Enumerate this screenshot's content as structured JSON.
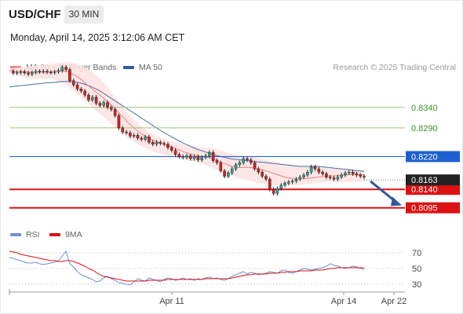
{
  "header": {
    "symbol": "USD/CHF",
    "timeframe": "30 MIN",
    "datetime": "Monday, April 14, 2025 3:12:06 AM CET"
  },
  "legend": {
    "ma20_label": "MA 20 + Bollinger Bands",
    "ma50_label": "MA 50",
    "credit": "Research © 2025 Trading Central",
    "rsi_label": "RSI",
    "ma9_label": "9MA"
  },
  "colors": {
    "ma20": "#f08080",
    "bollinger_fill": "#fde2e2",
    "ma50": "#4a6fa5",
    "bull": "#26a69a",
    "bear": "#cc2222",
    "rsi": "#6f8fd8",
    "rsi_ma9": "#dd1111",
    "resistance": "#9ec77a",
    "pivot": "#1e5fd0",
    "support": "#dd1111",
    "arrow": "#2f5b9c"
  },
  "chart_data": [
    {
      "type": "candlestick",
      "title": "USD/CHF",
      "timeframe": "30 MIN",
      "x_ticks": [
        "Apr 11",
        "Apr 14",
        "Apr 22"
      ],
      "ylim": [
        0.806,
        0.842
      ],
      "current_price": "0.8163",
      "levels": [
        {
          "label": "0.8340",
          "value": 0.834,
          "kind": "resistance"
        },
        {
          "label": "0.8290",
          "value": 0.829,
          "kind": "resistance"
        },
        {
          "label": "0.8220",
          "value": 0.822,
          "kind": "pivot"
        },
        {
          "label": "0.8140",
          "value": 0.814,
          "kind": "support"
        },
        {
          "label": "0.8095",
          "value": 0.8095,
          "kind": "support"
        }
      ],
      "projection": {
        "from": 0.816,
        "to": 0.8103
      },
      "close": [
        0.8428,
        0.8424,
        0.8425,
        0.8427,
        0.8424,
        0.8421,
        0.8425,
        0.8428,
        0.8427,
        0.8428,
        0.8426,
        0.8425,
        0.8427,
        0.843,
        0.8438,
        0.8432,
        0.8405,
        0.8395,
        0.8385,
        0.838,
        0.837,
        0.8358,
        0.8365,
        0.835,
        0.8345,
        0.8352,
        0.834,
        0.8335,
        0.832,
        0.829,
        0.828,
        0.8278,
        0.827,
        0.8272,
        0.8265,
        0.8262,
        0.8268,
        0.8255,
        0.825,
        0.8255,
        0.8252,
        0.825,
        0.8242,
        0.8235,
        0.8225,
        0.822,
        0.8218,
        0.8222,
        0.8215,
        0.822,
        0.8212,
        0.8218,
        0.8222,
        0.823,
        0.821,
        0.8205,
        0.8185,
        0.8172,
        0.818,
        0.819,
        0.82,
        0.8205,
        0.8215,
        0.8212,
        0.8205,
        0.819,
        0.8182,
        0.8172,
        0.8165,
        0.814,
        0.813,
        0.8142,
        0.815,
        0.8155,
        0.8158,
        0.816,
        0.8165,
        0.817,
        0.8175,
        0.8182,
        0.8195,
        0.819,
        0.8182,
        0.8178,
        0.817,
        0.8168,
        0.8165,
        0.817,
        0.8175,
        0.818,
        0.8182,
        0.8178,
        0.8175,
        0.8172,
        0.817
      ],
      "ma20": [
        0.843,
        0.8429,
        0.8428,
        0.8427,
        0.8427,
        0.8426,
        0.8426,
        0.8426,
        0.8426,
        0.8426,
        0.8426,
        0.8426,
        0.8427,
        0.8428,
        0.8428,
        0.8428,
        0.8425,
        0.842,
        0.8415,
        0.8408,
        0.84,
        0.8392,
        0.8385,
        0.8377,
        0.837,
        0.8362,
        0.8354,
        0.8346,
        0.8337,
        0.8327,
        0.8317,
        0.8307,
        0.8298,
        0.829,
        0.8282,
        0.8275,
        0.827,
        0.8265,
        0.826,
        0.8257,
        0.8253,
        0.825,
        0.8247,
        0.8243,
        0.824,
        0.8236,
        0.8232,
        0.8229,
        0.8226,
        0.8224,
        0.8222,
        0.822,
        0.8219,
        0.8217,
        0.8214,
        0.8211,
        0.8207,
        0.8203,
        0.8199,
        0.8196,
        0.8194,
        0.8193,
        0.8193,
        0.8194,
        0.8193,
        0.8192,
        0.819,
        0.8188,
        0.8185,
        0.8182,
        0.8179,
        0.8176,
        0.8173,
        0.817,
        0.8168,
        0.8167,
        0.8166,
        0.8166,
        0.8166,
        0.8167,
        0.8168,
        0.8169,
        0.817,
        0.8171,
        0.8172,
        0.8173,
        0.8173,
        0.8174,
        0.8174,
        0.8175,
        0.8176,
        0.8176,
        0.8176,
        0.8176,
        0.8175
      ],
      "bb_upper": [
        0.8435,
        0.8436,
        0.8437,
        0.8438,
        0.8439,
        0.844,
        0.8441,
        0.8442,
        0.8443,
        0.8444,
        0.8445,
        0.8446,
        0.8447,
        0.8448,
        0.8449,
        0.845,
        0.845,
        0.8448,
        0.8446,
        0.8442,
        0.8438,
        0.8432,
        0.8426,
        0.8418,
        0.841,
        0.84,
        0.839,
        0.8378,
        0.8366,
        0.8354,
        0.8342,
        0.833,
        0.832,
        0.831,
        0.8302,
        0.8294,
        0.8287,
        0.828,
        0.8275,
        0.827,
        0.8266,
        0.8263,
        0.826,
        0.8258,
        0.8255,
        0.8252,
        0.825,
        0.8248,
        0.8246,
        0.8244,
        0.8243,
        0.8242,
        0.8242,
        0.8242,
        0.824,
        0.8238,
        0.8235,
        0.8232,
        0.8229,
        0.8226,
        0.8224,
        0.8223,
        0.8222,
        0.8221,
        0.822,
        0.8218,
        0.8216,
        0.8214,
        0.8212,
        0.821,
        0.8208,
        0.8206,
        0.8204,
        0.8202,
        0.82,
        0.8198,
        0.8197,
        0.8196,
        0.8196,
        0.8196,
        0.8196,
        0.8196,
        0.8196,
        0.8195,
        0.8194,
        0.8193,
        0.8192,
        0.8191,
        0.819,
        0.819,
        0.819,
        0.8189,
        0.8188,
        0.8187,
        0.8186
      ],
      "bb_lower": [
        0.8422,
        0.842,
        0.8418,
        0.8415,
        0.8412,
        0.841,
        0.841,
        0.841,
        0.841,
        0.841,
        0.841,
        0.841,
        0.8408,
        0.8404,
        0.84,
        0.8395,
        0.8388,
        0.838,
        0.8372,
        0.8364,
        0.8356,
        0.8348,
        0.834,
        0.8332,
        0.8324,
        0.8316,
        0.8308,
        0.83,
        0.8292,
        0.8284,
        0.8276,
        0.8268,
        0.8262,
        0.8256,
        0.825,
        0.8245,
        0.8241,
        0.8237,
        0.8233,
        0.823,
        0.8227,
        0.8224,
        0.8222,
        0.822,
        0.8218,
        0.8216,
        0.8214,
        0.8212,
        0.821,
        0.8208,
        0.8206,
        0.8203,
        0.82,
        0.8196,
        0.8192,
        0.8188,
        0.8184,
        0.818,
        0.8176,
        0.8173,
        0.817,
        0.8167,
        0.8164,
        0.8162,
        0.816,
        0.8158,
        0.8156,
        0.8154,
        0.8152,
        0.815,
        0.815,
        0.815,
        0.815,
        0.815,
        0.815,
        0.815,
        0.815,
        0.8151,
        0.8152,
        0.8153,
        0.8154,
        0.8155,
        0.8156,
        0.8157,
        0.8158,
        0.8158,
        0.8158,
        0.8158,
        0.8158,
        0.8158,
        0.8158,
        0.8158,
        0.8158,
        0.8158,
        0.8158
      ],
      "ma50": [
        0.839,
        0.8391,
        0.8392,
        0.8393,
        0.8394,
        0.8395,
        0.8396,
        0.8397,
        0.8398,
        0.8399,
        0.84,
        0.84,
        0.8401,
        0.8402,
        0.8403,
        0.8403,
        0.8403,
        0.8402,
        0.8401,
        0.8399,
        0.8396,
        0.8393,
        0.8389,
        0.8385,
        0.838,
        0.8374,
        0.8368,
        0.8362,
        0.8356,
        0.835,
        0.8344,
        0.8338,
        0.8332,
        0.8326,
        0.832,
        0.8314,
        0.8308,
        0.8302,
        0.8296,
        0.829,
        0.8284,
        0.8278,
        0.8273,
        0.8268,
        0.8263,
        0.8258,
        0.8253,
        0.8249,
        0.8245,
        0.8241,
        0.8237,
        0.8234,
        0.8231,
        0.8228,
        0.8225,
        0.8222,
        0.822,
        0.8218,
        0.8216,
        0.8214,
        0.8213,
        0.8212,
        0.8211,
        0.821,
        0.8209,
        0.8208,
        0.8207,
        0.8206,
        0.8205,
        0.8204,
        0.8203,
        0.8202,
        0.8201,
        0.82,
        0.8199,
        0.8198,
        0.8197,
        0.8196,
        0.8196,
        0.8196,
        0.8196,
        0.8196,
        0.8196,
        0.8195,
        0.8194,
        0.8193,
        0.8192,
        0.8191,
        0.819,
        0.8189,
        0.8188,
        0.8187,
        0.8186,
        0.8185,
        0.8184
      ]
    },
    {
      "type": "line",
      "title": "RSI",
      "y_ticks": [
        70,
        50,
        30
      ],
      "ylim": [
        20,
        80
      ],
      "series": [
        {
          "name": "RSI",
          "values": [
            64,
            63,
            61,
            60,
            58,
            57,
            57,
            58,
            56,
            55,
            56,
            57,
            58,
            60,
            66,
            72,
            56,
            52,
            46,
            42,
            40,
            38,
            36,
            33,
            34,
            38,
            40,
            37,
            35,
            32,
            31,
            30,
            29,
            33,
            37,
            35,
            34,
            38,
            36,
            35,
            33,
            36,
            38,
            37,
            35,
            36,
            38,
            36,
            37,
            35,
            37,
            36,
            38,
            39,
            37,
            38,
            36,
            35,
            37,
            40,
            42,
            44,
            46,
            43,
            45,
            44,
            42,
            43,
            44,
            46,
            45,
            44,
            47,
            48,
            45,
            44,
            46,
            48,
            50,
            49,
            48,
            49,
            50,
            51,
            53,
            56,
            54,
            53,
            51,
            50,
            51,
            53,
            52,
            50,
            49
          ]
        },
        {
          "name": "9MA",
          "values": [
            72,
            71,
            70,
            68,
            67,
            66,
            65,
            64,
            63,
            62,
            61,
            60,
            60,
            59,
            59,
            60,
            60,
            59,
            57,
            55,
            53,
            50,
            48,
            45,
            42,
            40,
            39,
            38,
            37,
            36,
            35,
            34,
            34,
            34,
            34,
            34,
            34,
            35,
            35,
            35,
            35,
            35,
            36,
            36,
            36,
            36,
            36,
            36,
            36,
            36,
            36,
            36,
            37,
            37,
            37,
            37,
            37,
            37,
            37,
            38,
            39,
            40,
            41,
            42,
            42,
            43,
            43,
            43,
            43,
            44,
            44,
            44,
            45,
            45,
            46,
            46,
            46,
            47,
            47,
            47,
            47,
            48,
            48,
            48,
            49,
            50,
            50,
            51,
            51,
            51,
            51,
            51,
            51,
            51,
            51
          ]
        }
      ]
    }
  ]
}
